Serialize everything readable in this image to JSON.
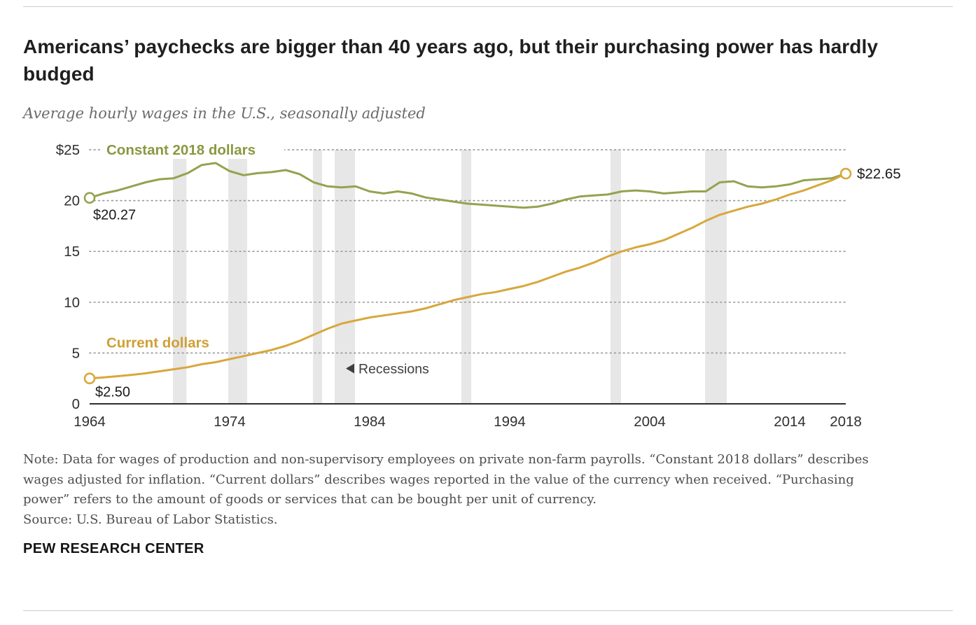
{
  "header": {
    "title": "Americans’ paychecks are bigger than 40 years ago, but their purchasing power has hardly budged",
    "subtitle": "Average hourly wages in the U.S., seasonally adjusted"
  },
  "chart_data": {
    "type": "line",
    "title": "Average hourly wages in the U.S., seasonally adjusted",
    "x_range": [
      1964,
      2018
    ],
    "ylim": [
      0,
      25
    ],
    "y_ticks": [
      0,
      5,
      10,
      15,
      20,
      25
    ],
    "y_tick_labels": [
      "0",
      "5",
      "10",
      "15",
      "20",
      "$25"
    ],
    "x_ticks": [
      1964,
      1974,
      1984,
      1994,
      2004,
      2014,
      2018
    ],
    "grid": "dotted-horizontal",
    "legend_position": "inline-labels",
    "years": [
      1964,
      1965,
      1966,
      1967,
      1968,
      1969,
      1970,
      1971,
      1972,
      1973,
      1974,
      1975,
      1976,
      1977,
      1978,
      1979,
      1980,
      1981,
      1982,
      1983,
      1984,
      1985,
      1986,
      1987,
      1988,
      1989,
      1990,
      1991,
      1992,
      1993,
      1994,
      1995,
      1996,
      1997,
      1998,
      1999,
      2000,
      2001,
      2002,
      2003,
      2004,
      2005,
      2006,
      2007,
      2008,
      2009,
      2010,
      2011,
      2012,
      2013,
      2014,
      2015,
      2016,
      2017,
      2018
    ],
    "series": [
      {
        "id": "constant-2018-dollars",
        "name": "Constant 2018 dollars",
        "color": "#95a24f",
        "label_color": "#8a9840",
        "values": [
          20.27,
          20.7,
          21.0,
          21.4,
          21.8,
          22.1,
          22.2,
          22.7,
          23.5,
          23.7,
          22.9,
          22.5,
          22.7,
          22.8,
          23.0,
          22.6,
          21.8,
          21.4,
          21.3,
          21.4,
          20.9,
          20.7,
          20.9,
          20.7,
          20.3,
          20.1,
          19.9,
          19.7,
          19.6,
          19.5,
          19.4,
          19.3,
          19.4,
          19.7,
          20.1,
          20.4,
          20.5,
          20.6,
          20.9,
          21.0,
          20.9,
          20.7,
          20.8,
          20.9,
          20.9,
          21.8,
          21.9,
          21.4,
          21.3,
          21.4,
          21.6,
          22.0,
          22.1,
          22.2,
          22.65
        ]
      },
      {
        "id": "current-dollars",
        "name": "Current dollars",
        "color": "#d8a73c",
        "label_color": "#cf9f35",
        "values": [
          2.5,
          2.6,
          2.72,
          2.85,
          3.0,
          3.2,
          3.4,
          3.6,
          3.9,
          4.1,
          4.4,
          4.7,
          5.0,
          5.3,
          5.7,
          6.2,
          6.8,
          7.4,
          7.9,
          8.2,
          8.5,
          8.7,
          8.9,
          9.1,
          9.4,
          9.8,
          10.2,
          10.5,
          10.8,
          11.0,
          11.3,
          11.6,
          12.0,
          12.5,
          13.0,
          13.4,
          13.9,
          14.5,
          15.0,
          15.4,
          15.7,
          16.1,
          16.7,
          17.3,
          18.0,
          18.6,
          19.0,
          19.4,
          19.7,
          20.1,
          20.6,
          21.0,
          21.5,
          22.0,
          22.65
        ]
      }
    ],
    "recessions": [
      [
        1969.95,
        1970.92
      ],
      [
        1973.9,
        1975.25
      ],
      [
        1979.95,
        1980.6
      ],
      [
        1981.5,
        1982.95
      ],
      [
        1990.55,
        1991.25
      ],
      [
        2001.2,
        2001.95
      ],
      [
        2007.95,
        2009.5
      ]
    ],
    "markers": [
      {
        "series": 0,
        "year": 1964,
        "value": 20.27
      },
      {
        "series": 1,
        "year": 1964,
        "value": 2.5
      },
      {
        "series": 1,
        "year": 2018,
        "value": 22.65
      }
    ],
    "annotations": {
      "start_constant": {
        "text": "$20.27",
        "year": 1964,
        "value": 20.27
      },
      "start_current": {
        "text": "$2.50",
        "year": 1964,
        "value": 2.5
      },
      "end": {
        "text": "$22.65",
        "year": 2018,
        "value": 22.65
      },
      "recessions": {
        "text": "Recessions",
        "year": 1983.2,
        "value": 3.0
      }
    },
    "colors": {
      "recession": "#e7e7e7",
      "grid": "#9b9b9b",
      "axis": "#2e2e2e",
      "tick_text": "#2f2f2f",
      "annotation_text": "#1a1a1a",
      "recession_label": "#3f3f3f"
    }
  },
  "footer": {
    "note": "Note: Data for wages of production and non-supervisory employees on private non-farm payrolls. “Constant 2018 dollars” describes wages adjusted for inflation. “Current dollars” describes wages reported in the value of the currency when received. “Purchasing power” refers to the amount of goods or services that can be bought per unit of currency.",
    "source": "Source: U.S. Bureau of Labor Statistics.",
    "brand": "PEW RESEARCH CENTER"
  }
}
